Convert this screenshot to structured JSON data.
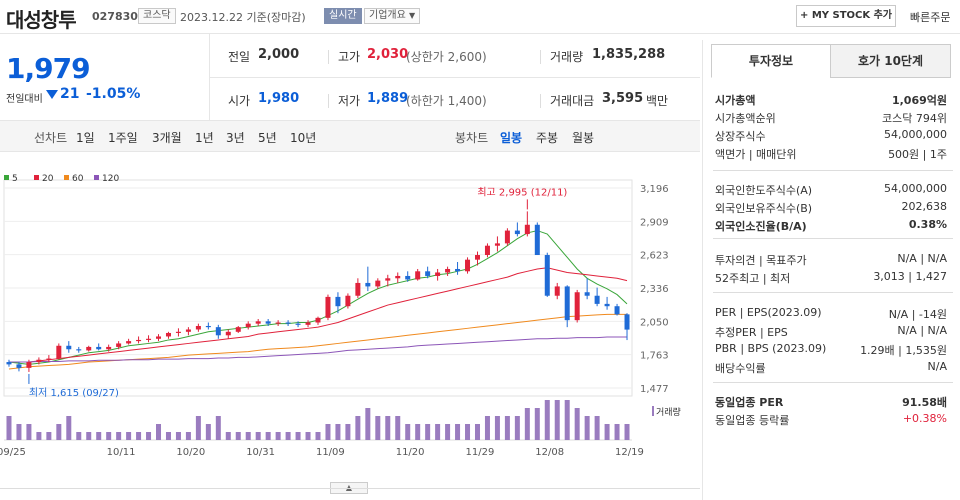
{
  "header": {
    "name": "대성창투",
    "code": "027830",
    "market": "코스닥",
    "date_text": "2023.12.22 기준(장마감)",
    "realtime": "실시간",
    "corp_overview": "기업개요",
    "mystock": "+ MY STOCK 추가",
    "quick_order": "빠른주문"
  },
  "price": {
    "current": "1,979",
    "change_label": "전일대비",
    "change_value": "21",
    "change_pct": "-1.05%"
  },
  "stats": [
    {
      "label": "전일",
      "value": "2,000",
      "sub": ""
    },
    {
      "label": "고가",
      "value": "2,030",
      "sub": "(상한가 2,600)"
    },
    {
      "label": "거래량",
      "value": "1,835,288",
      "sub": ""
    },
    {
      "label": "시가",
      "value": "1,980",
      "sub": ""
    },
    {
      "label": "저가",
      "value": "1,889",
      "sub": "(하한가 1,400)"
    },
    {
      "label": "거래대금",
      "value": "3,595",
      "sub": "백만"
    }
  ],
  "toolbar": {
    "line_label": "선차트",
    "periods": [
      "1일",
      "1주일",
      "3개월",
      "1년",
      "3년",
      "5년",
      "10년"
    ],
    "candle_label": "봉차트",
    "candle_periods": [
      "일봉",
      "주봉",
      "월봉"
    ]
  },
  "legend": [
    {
      "name": "5",
      "color": "#3aa63a"
    },
    {
      "name": "20",
      "color": "#e0223b"
    },
    {
      "name": "60",
      "color": "#f08a1e"
    },
    {
      "name": "120",
      "color": "#8c56b8"
    }
  ],
  "tabs": {
    "invest": "투자정보",
    "hoga": "호가 10단계"
  },
  "info": [
    {
      "k": "시가총액",
      "v": "1,069억원",
      "bold": true
    },
    {
      "k": "시가총액순위",
      "v": "코스닥 794위"
    },
    {
      "k": "상장주식수",
      "v": "54,000,000"
    },
    {
      "k": "액면가 | 매매단위",
      "v": "500원 | 1주"
    },
    {
      "k": "외국인한도주식수(A)",
      "v": "54,000,000"
    },
    {
      "k": "외국인보유주식수(B)",
      "v": "202,638"
    },
    {
      "k": "외국인소진율(B/A)",
      "v": "0.38%",
      "bold": true
    },
    {
      "k": "투자의견 | 목표주가",
      "v": "N/A | N/A"
    },
    {
      "k": "52주최고 | 최저",
      "v": "3,013 | 1,427"
    },
    {
      "k": "PER | EPS(2023.09)",
      "v": "N/A | -14원"
    },
    {
      "k": "추정PER | EPS",
      "v": "N/A | N/A"
    },
    {
      "k": "PBR | BPS (2023.09)",
      "v": "1.29배 | 1,535원"
    },
    {
      "k": "배당수익률",
      "v": "N/A"
    },
    {
      "k": "동일업종 PER",
      "v": "91.58배",
      "bold": true
    },
    {
      "k": "동일업종 등락률",
      "v": "+0.38%",
      "red": true
    }
  ],
  "chart_data": {
    "type": "candlestick",
    "yticks": [
      "3,196",
      "2,909",
      "2,623",
      "2,336",
      "2,050",
      "1,763",
      "1,477"
    ],
    "ylim": [
      1477,
      3196
    ],
    "xticks": [
      "09/25",
      "10/11",
      "10/20",
      "10/31",
      "11/09",
      "11/20",
      "11/29",
      "12/08",
      "12/19"
    ],
    "xtick_index": [
      0,
      11,
      18,
      25,
      32,
      40,
      47,
      54,
      62
    ],
    "max_label": "최고 2,995 (12/11)",
    "min_label": "최저 1,615 (09/27)",
    "volume_label": "거래량",
    "candles": [
      [
        1700,
        1720,
        1660,
        1680
      ],
      [
        1680,
        1700,
        1620,
        1650
      ],
      [
        1650,
        1720,
        1615,
        1700
      ],
      [
        1700,
        1740,
        1680,
        1720
      ],
      [
        1720,
        1760,
        1700,
        1730
      ],
      [
        1730,
        1860,
        1720,
        1840
      ],
      [
        1840,
        1880,
        1780,
        1810
      ],
      [
        1810,
        1830,
        1780,
        1800
      ],
      [
        1800,
        1840,
        1790,
        1830
      ],
      [
        1830,
        1860,
        1800,
        1810
      ],
      [
        1810,
        1850,
        1790,
        1830
      ],
      [
        1830,
        1880,
        1810,
        1860
      ],
      [
        1860,
        1900,
        1850,
        1880
      ],
      [
        1880,
        1920,
        1860,
        1890
      ],
      [
        1890,
        1930,
        1870,
        1900
      ],
      [
        1900,
        1940,
        1880,
        1920
      ],
      [
        1920,
        1960,
        1900,
        1950
      ],
      [
        1950,
        1990,
        1920,
        1960
      ],
      [
        1960,
        2000,
        1930,
        1980
      ],
      [
        1980,
        2030,
        1960,
        2010
      ],
      [
        2010,
        2040,
        1980,
        2000
      ],
      [
        2000,
        2020,
        1900,
        1930
      ],
      [
        1930,
        1980,
        1900,
        1960
      ],
      [
        1960,
        2010,
        1950,
        2000
      ],
      [
        2000,
        2050,
        1980,
        2030
      ],
      [
        2030,
        2070,
        2010,
        2050
      ],
      [
        2050,
        2070,
        2010,
        2030
      ],
      [
        2030,
        2060,
        2010,
        2040
      ],
      [
        2040,
        2060,
        2010,
        2030
      ],
      [
        2030,
        2050,
        2000,
        2020
      ],
      [
        2020,
        2060,
        2000,
        2040
      ],
      [
        2040,
        2090,
        2020,
        2080
      ],
      [
        2080,
        2280,
        2060,
        2260
      ],
      [
        2260,
        2300,
        2120,
        2180
      ],
      [
        2180,
        2290,
        2160,
        2270
      ],
      [
        2270,
        2420,
        2250,
        2380
      ],
      [
        2380,
        2520,
        2310,
        2350
      ],
      [
        2350,
        2420,
        2330,
        2400
      ],
      [
        2400,
        2450,
        2350,
        2420
      ],
      [
        2420,
        2470,
        2380,
        2440
      ],
      [
        2440,
        2480,
        2390,
        2410
      ],
      [
        2410,
        2500,
        2400,
        2480
      ],
      [
        2480,
        2520,
        2420,
        2440
      ],
      [
        2440,
        2500,
        2400,
        2470
      ],
      [
        2470,
        2520,
        2440,
        2500
      ],
      [
        2500,
        2560,
        2450,
        2480
      ],
      [
        2480,
        2600,
        2460,
        2580
      ],
      [
        2580,
        2650,
        2530,
        2620
      ],
      [
        2620,
        2720,
        2600,
        2700
      ],
      [
        2700,
        2780,
        2650,
        2720
      ],
      [
        2720,
        2850,
        2700,
        2830
      ],
      [
        2830,
        2900,
        2780,
        2800
      ],
      [
        2800,
        2995,
        2780,
        2880
      ],
      [
        2880,
        2900,
        2620,
        2620
      ],
      [
        2620,
        2640,
        2260,
        2270
      ],
      [
        2270,
        2380,
        2240,
        2350
      ],
      [
        2350,
        2360,
        2000,
        2060
      ],
      [
        2060,
        2320,
        2040,
        2300
      ],
      [
        2300,
        2420,
        2240,
        2270
      ],
      [
        2270,
        2340,
        2180,
        2200
      ],
      [
        2200,
        2260,
        2150,
        2180
      ],
      [
        2180,
        2200,
        2100,
        2110
      ],
      [
        2110,
        2120,
        1889,
        1979
      ]
    ],
    "ma": {
      "5": [
        1700,
        1690,
        1680,
        1690,
        1700,
        1720,
        1740,
        1760,
        1780,
        1790,
        1800,
        1820,
        1840,
        1850,
        1860,
        1870,
        1890,
        1900,
        1920,
        1940,
        1960,
        1970,
        1980,
        1990,
        2000,
        2010,
        2020,
        2030,
        2030,
        2040,
        2040,
        2060,
        2100,
        2140,
        2190,
        2240,
        2290,
        2330,
        2360,
        2380,
        2400,
        2420,
        2430,
        2450,
        2460,
        2480,
        2500,
        2540,
        2590,
        2640,
        2700,
        2760,
        2810,
        2830,
        2800,
        2700,
        2600,
        2500,
        2420,
        2370,
        2330,
        2280,
        2200
      ],
      "20": [
        1700,
        1700,
        1700,
        1710,
        1720,
        1730,
        1740,
        1750,
        1760,
        1770,
        1780,
        1790,
        1800,
        1810,
        1820,
        1830,
        1840,
        1850,
        1860,
        1870,
        1880,
        1890,
        1900,
        1910,
        1920,
        1940,
        1950,
        1960,
        1970,
        1980,
        1990,
        2000,
        2020,
        2040,
        2070,
        2100,
        2130,
        2160,
        2190,
        2210,
        2230,
        2250,
        2270,
        2290,
        2310,
        2330,
        2350,
        2370,
        2390,
        2410,
        2430,
        2460,
        2480,
        2500,
        2510,
        2490,
        2470,
        2460,
        2450,
        2440,
        2430,
        2420,
        2400
      ],
      "60": [
        1640,
        1650,
        1660,
        1665,
        1670,
        1675,
        1680,
        1690,
        1700,
        1705,
        1710,
        1715,
        1720,
        1725,
        1730,
        1735,
        1740,
        1750,
        1760,
        1765,
        1770,
        1775,
        1780,
        1785,
        1790,
        1800,
        1810,
        1815,
        1820,
        1825,
        1830,
        1840,
        1850,
        1860,
        1870,
        1880,
        1890,
        1900,
        1910,
        1920,
        1930,
        1940,
        1950,
        1960,
        1970,
        1980,
        1990,
        2000,
        2010,
        2020,
        2030,
        2040,
        2050,
        2060,
        2070,
        2080,
        2090,
        2095,
        2100,
        2105,
        2110,
        2110,
        2110
      ],
      "120": [
        1700,
        1700,
        1700,
        1705,
        1705,
        1705,
        1710,
        1710,
        1710,
        1715,
        1715,
        1715,
        1720,
        1720,
        1720,
        1725,
        1725,
        1725,
        1730,
        1730,
        1730,
        1735,
        1735,
        1740,
        1740,
        1745,
        1750,
        1755,
        1760,
        1765,
        1770,
        1775,
        1780,
        1790,
        1800,
        1805,
        1810,
        1815,
        1820,
        1825,
        1830,
        1840,
        1845,
        1850,
        1855,
        1860,
        1865,
        1870,
        1875,
        1880,
        1885,
        1890,
        1895,
        1900,
        1900,
        1905,
        1905,
        1910,
        1910,
        1910,
        1915,
        1915,
        1915
      ]
    },
    "volume": [
      3,
      2,
      2,
      1,
      1,
      2,
      3,
      1,
      1,
      1,
      1,
      1,
      1,
      1,
      1,
      2,
      1,
      1,
      1,
      3,
      2,
      3,
      1,
      1,
      1,
      1,
      1,
      1,
      1,
      1,
      1,
      1,
      2,
      2,
      2,
      3,
      4,
      3,
      3,
      3,
      2,
      2,
      2,
      2,
      2,
      2,
      2,
      2,
      3,
      3,
      3,
      3,
      4,
      4,
      5,
      5,
      5,
      4,
      3,
      3,
      2,
      2,
      2
    ]
  }
}
